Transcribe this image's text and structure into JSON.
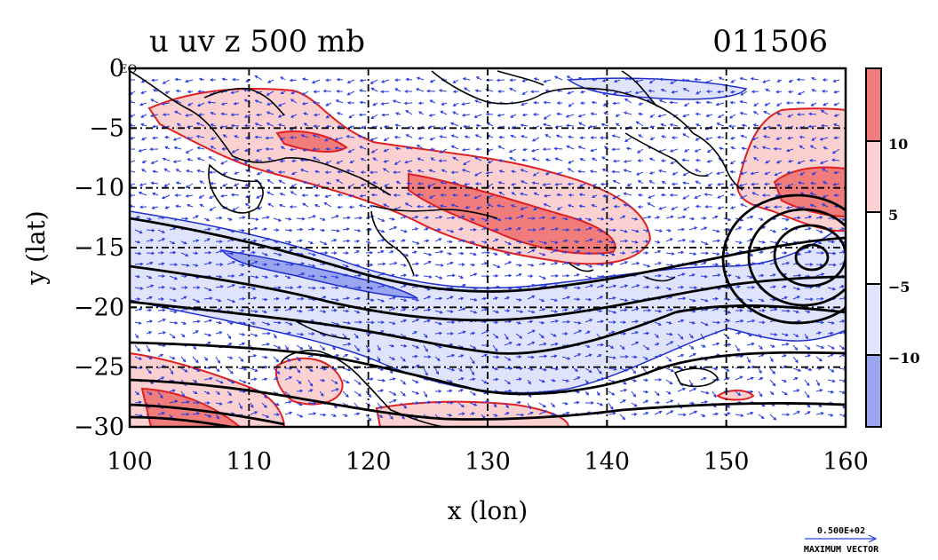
{
  "figure": {
    "title": "u uv z 500 mb",
    "date_code": "011506",
    "eq_marker": "EQ",
    "xlabel": "x (lon)",
    "ylabel": "y (lat)"
  },
  "axes": {
    "x_ticks": [
      100,
      110,
      120,
      130,
      140,
      150,
      160
    ],
    "y_ticks": [
      0,
      -5,
      -10,
      -15,
      -20,
      -25,
      -30
    ],
    "y_tick_labels": [
      "0",
      "−5",
      "−10",
      "−15",
      "−20",
      "−25",
      "−30"
    ],
    "xlim": [
      100,
      160
    ],
    "ylim": [
      -30,
      0
    ]
  },
  "colorbar": {
    "labels": [
      "10",
      "5",
      "−5",
      "−10"
    ],
    "levels": [
      10,
      5,
      -5,
      -10
    ],
    "colors": [
      "#f07c7c",
      "#fbd0d0",
      "#ffffff",
      "#dfe3fb",
      "#9ba6f0"
    ]
  },
  "vector_key": {
    "magnitude_label": "0.500E+02",
    "caption": "MAXIMUM VECTOR"
  },
  "colors": {
    "positive_contour": "#e02020",
    "negative_contour": "#2030d0",
    "coast": "#000000",
    "vectors": "#2b3de0"
  }
}
